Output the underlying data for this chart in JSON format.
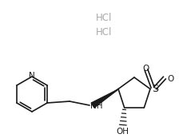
{
  "background_color": "#ffffff",
  "line_color": "#1a1a1a",
  "hcl_color": "#aaaaaa",
  "hcl1_text": "HCl",
  "hcl2_text": "HCl",
  "label_NH": "NH",
  "label_OH": "OH",
  "label_S": "S",
  "label_O": "O",
  "label_N": "N",
  "font_size_labels": 7.5,
  "font_size_hcl": 8.5,
  "line_width": 1.2,
  "figsize": [
    2.24,
    1.73
  ],
  "dpi": 100
}
